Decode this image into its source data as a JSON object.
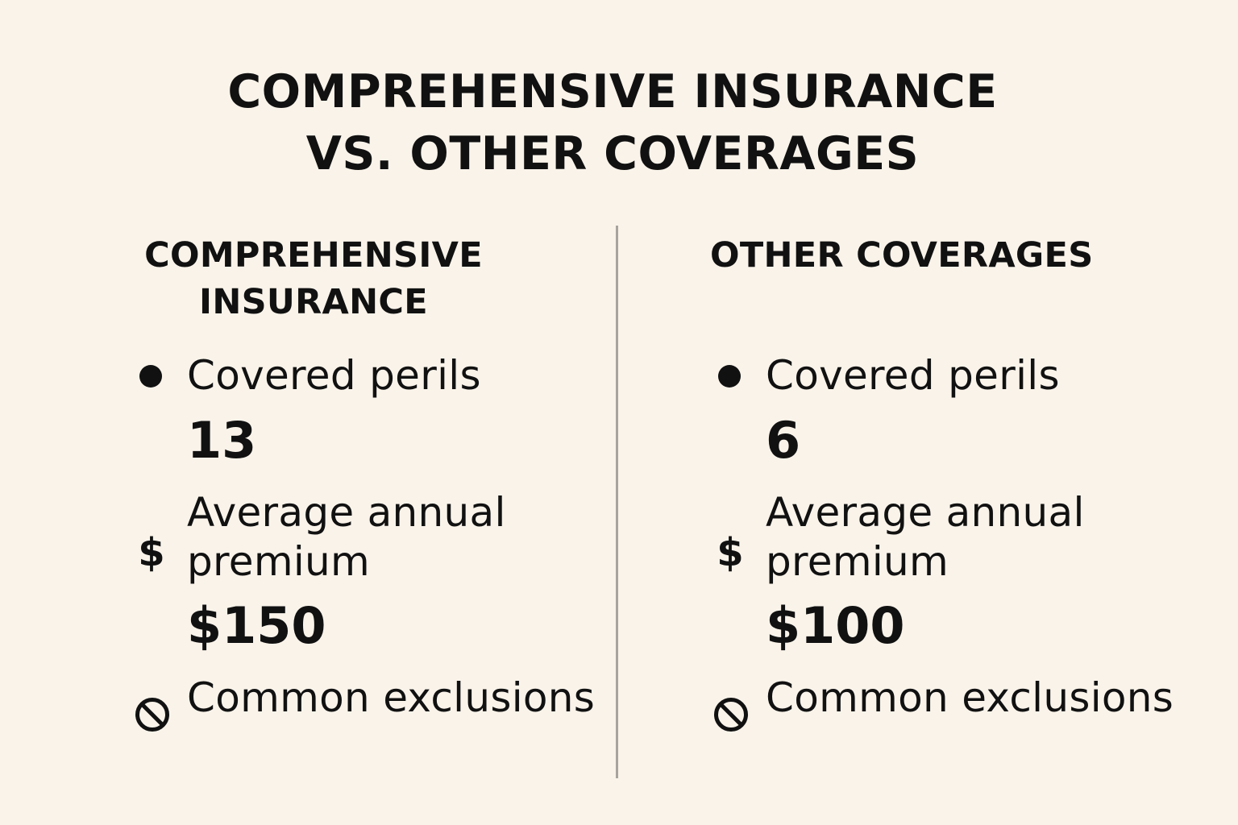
{
  "title": {
    "line1": "COMPREHENSIVE INSURANCE",
    "line2": "VS. OTHER COVERAGES"
  },
  "columns": [
    {
      "heading_line1": "COMPREHENSIVE",
      "heading_line2": "INSURANCE",
      "rows": {
        "perils": {
          "icon": "bullet-icon",
          "label": "Covered perils",
          "value": "13"
        },
        "premium": {
          "icon": "dollar-icon",
          "label": "Average annual premium",
          "value": "$150"
        },
        "exclusions": {
          "icon": "prohibited-icon",
          "label": "Common exclusions"
        }
      }
    },
    {
      "heading_line1": "OTHER COVERAGES",
      "heading_line2": "",
      "rows": {
        "perils": {
          "icon": "bullet-icon",
          "label": "Covered perils",
          "value": "6"
        },
        "premium": {
          "icon": "dollar-icon",
          "label": "Average annual premium",
          "value": "$100"
        },
        "exclusions": {
          "icon": "prohibited-icon",
          "label": "Common exclusions"
        }
      }
    }
  ],
  "colors": {
    "background": "#f9f3ea",
    "text": "#111111",
    "divider": "#a7a39d"
  }
}
